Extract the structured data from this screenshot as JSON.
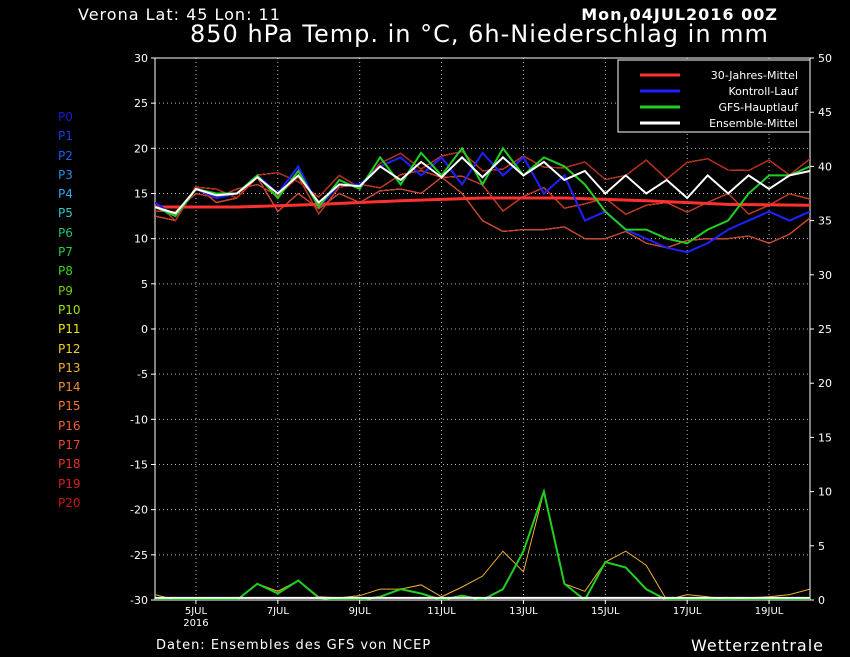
{
  "header": {
    "location": "Verona   Lat: 45 Lon: 11",
    "date": "Mon,04JUL2016 00Z",
    "title": "850 hPa Temp. in °C, 6h-Niederschlag in mm"
  },
  "footer": {
    "source": "Daten: Ensembles des GFS von NCEP",
    "brand": "Wetterzentrale"
  },
  "members": [
    {
      "label": "P0",
      "color": "#1a1ad0"
    },
    {
      "label": "P1",
      "color": "#1a3ae0"
    },
    {
      "label": "P2",
      "color": "#1a60f0"
    },
    {
      "label": "P3",
      "color": "#2a8ae8"
    },
    {
      "label": "P4",
      "color": "#30a8e8"
    },
    {
      "label": "P5",
      "color": "#30c8c8"
    },
    {
      "label": "P6",
      "color": "#20c080"
    },
    {
      "label": "P7",
      "color": "#20d040"
    },
    {
      "label": "P8",
      "color": "#40d020"
    },
    {
      "label": "P9",
      "color": "#70d010"
    },
    {
      "label": "P10",
      "color": "#a0e010"
    },
    {
      "label": "P11",
      "color": "#e8e810"
    },
    {
      "label": "P12",
      "color": "#f0d020"
    },
    {
      "label": "P13",
      "color": "#f0b030"
    },
    {
      "label": "P14",
      "color": "#f09030"
    },
    {
      "label": "P15",
      "color": "#f07830"
    },
    {
      "label": "P16",
      "color": "#f06030"
    },
    {
      "label": "P17",
      "color": "#e84830"
    },
    {
      "label": "P18",
      "color": "#e03030"
    },
    {
      "label": "P19",
      "color": "#d82020"
    },
    {
      "label": "P20",
      "color": "#c81818"
    }
  ],
  "chart_data": {
    "type": "line",
    "x_unit": "hours since 04JUL2016 00Z",
    "x_range": [
      0,
      384
    ],
    "x_ticks": [
      {
        "x": 24,
        "label": "5JUL",
        "sub": "2016"
      },
      {
        "x": 72,
        "label": "7JUL",
        "sub": ""
      },
      {
        "x": 120,
        "label": "9JUL",
        "sub": ""
      },
      {
        "x": 168,
        "label": "11JUL",
        "sub": ""
      },
      {
        "x": 216,
        "label": "13JUL",
        "sub": ""
      },
      {
        "x": 264,
        "label": "15JUL",
        "sub": ""
      },
      {
        "x": 312,
        "label": "17JUL",
        "sub": ""
      },
      {
        "x": 360,
        "label": "19JUL",
        "sub": ""
      }
    ],
    "y_left": {
      "label": "°C",
      "range": [
        -30,
        30
      ],
      "ticks": [
        30,
        25,
        20,
        15,
        10,
        5,
        0,
        -5,
        -10,
        -15,
        -20,
        -25,
        -30
      ]
    },
    "y_right": {
      "label": "mm",
      "range": [
        0,
        50
      ],
      "ticks": [
        50,
        45,
        40,
        35,
        30,
        25,
        20,
        15,
        10,
        5,
        0
      ]
    },
    "grid": true,
    "legend_position": "top-right",
    "series": [
      {
        "name": "30-Jahres-Mittel",
        "color": "#ff3030",
        "axis": "left",
        "x": [
          0,
          48,
          96,
          144,
          192,
          240,
          288,
          336,
          384
        ],
        "y": [
          13.5,
          13.5,
          13.8,
          14.2,
          14.5,
          14.5,
          14.2,
          13.8,
          13.7
        ]
      },
      {
        "name": "Kontroll-Lauf",
        "color": "#2020ff",
        "axis": "left",
        "x": [
          0,
          12,
          24,
          36,
          48,
          60,
          72,
          84,
          96,
          108,
          120,
          132,
          144,
          156,
          168,
          180,
          192,
          204,
          216,
          228,
          240,
          252,
          264,
          276,
          288,
          300,
          312,
          324,
          336,
          348,
          360,
          372,
          384
        ],
        "y": [
          14,
          12.5,
          15.5,
          14.5,
          15,
          17,
          15,
          18,
          13.5,
          16,
          16,
          18,
          19,
          17,
          19,
          16,
          19.5,
          17,
          19,
          15,
          17,
          12,
          13,
          11,
          10,
          9,
          8.5,
          9.5,
          11,
          12,
          13,
          12,
          13
        ]
      },
      {
        "name": "GFS-Hauptlauf",
        "color": "#20d020",
        "axis": "left",
        "x": [
          0,
          12,
          24,
          36,
          48,
          60,
          72,
          84,
          96,
          108,
          120,
          132,
          144,
          156,
          168,
          180,
          192,
          204,
          216,
          228,
          240,
          252,
          264,
          276,
          288,
          300,
          312,
          324,
          336,
          348,
          360,
          372,
          384
        ],
        "y": [
          13.5,
          12.5,
          15.5,
          15,
          15,
          17,
          14.5,
          17.5,
          13.5,
          16.5,
          15.5,
          19,
          16,
          19.5,
          17,
          20,
          16,
          20,
          17,
          19,
          18,
          16,
          13,
          11,
          11,
          10,
          9.5,
          11,
          12,
          15,
          17,
          17,
          18
        ]
      },
      {
        "name": "Ensemble-Mittel",
        "color": "#ffffff",
        "axis": "left",
        "x": [
          0,
          12,
          24,
          36,
          48,
          60,
          72,
          84,
          96,
          108,
          120,
          132,
          144,
          156,
          168,
          180,
          192,
          204,
          216,
          228,
          240,
          252,
          264,
          276,
          288,
          300,
          312,
          324,
          336,
          348,
          360,
          372,
          384
        ],
        "y": [
          13.5,
          12.8,
          15.5,
          14.8,
          15,
          16.8,
          15,
          17,
          14,
          16,
          15.8,
          18,
          16.5,
          18.5,
          16.8,
          19,
          16.8,
          19,
          17,
          18.5,
          16.5,
          17.5,
          15,
          17,
          15,
          16.5,
          14.5,
          17,
          15,
          17,
          15.5,
          17,
          17.5
        ]
      },
      {
        "name": "",
        "color": "#20d020",
        "axis": "right",
        "x": [
          0,
          12,
          24,
          36,
          48,
          60,
          72,
          84,
          96,
          108,
          120,
          132,
          144,
          156,
          168,
          180,
          192,
          204,
          216,
          228,
          240,
          252,
          264,
          276,
          288,
          300,
          312,
          324,
          336,
          348,
          360,
          372,
          384
        ],
        "y": [
          0,
          0,
          0,
          0,
          0,
          0,
          0,
          0,
          0,
          0,
          0,
          0,
          0,
          0,
          0,
          0,
          0,
          0,
          0,
          0,
          0,
          0,
          0,
          0,
          0,
          0,
          0,
          0,
          0,
          0,
          0,
          0,
          0
        ]
      },
      {
        "name": "",
        "color": "#f0b030",
        "axis": "right",
        "x": [
          0,
          12,
          24,
          36,
          48,
          60,
          72,
          84,
          96,
          108,
          120,
          132,
          144,
          156,
          168,
          180,
          192,
          204,
          216,
          228,
          240,
          252,
          264,
          276,
          288,
          300,
          312,
          324,
          336,
          348,
          360,
          372,
          384
        ],
        "y": [
          0,
          0,
          0,
          0,
          0,
          0,
          0,
          0,
          0,
          0,
          0,
          0,
          0,
          0,
          0,
          0,
          0,
          0,
          0,
          0,
          0,
          0,
          0,
          0,
          0,
          0,
          0,
          0,
          0,
          0,
          0,
          0,
          0
        ]
      },
      {
        "name": "",
        "color": "#2a8ae8",
        "axis": "right",
        "x": [
          0,
          12,
          24,
          36,
          48,
          60,
          72,
          84,
          96,
          108,
          120,
          132,
          144,
          156,
          168,
          180,
          192,
          204,
          216,
          228,
          240,
          252,
          264,
          276,
          288,
          300,
          312,
          324,
          336,
          348,
          360,
          372,
          384
        ],
        "y": [
          0,
          0,
          0,
          0,
          0,
          0,
          0,
          0,
          0,
          0,
          0,
          0,
          0,
          0,
          0,
          0,
          0,
          0,
          0,
          0,
          0,
          0,
          0,
          0,
          0,
          0,
          0,
          0,
          0,
          0,
          0,
          0,
          0
        ]
      }
    ],
    "ensemble_spread": {
      "x": [
        0,
        12,
        24,
        36,
        48,
        60,
        72,
        84,
        96,
        108,
        120,
        132,
        144,
        156,
        168,
        180,
        192,
        204,
        216,
        228,
        240,
        252,
        264,
        276,
        288,
        300,
        312,
        324,
        336,
        348,
        360,
        372,
        384
      ],
      "upper": [
        14,
        13,
        16,
        15.5,
        15.5,
        17.5,
        18,
        18,
        15.5,
        17,
        17.5,
        20,
        20,
        20,
        20.5,
        20.5,
        21,
        21,
        21.5,
        22,
        21,
        21,
        20.5,
        20,
        21.5,
        21,
        22.5,
        21.5,
        22,
        21,
        21.5,
        21,
        22
      ],
      "lower": [
        12.5,
        12,
        15,
        14,
        14.5,
        16,
        13,
        15,
        12.5,
        15,
        14,
        14.5,
        15.5,
        15,
        16,
        15,
        12,
        10,
        11,
        11,
        10.5,
        10,
        10,
        10,
        9.5,
        9,
        9,
        10,
        10,
        9.5,
        9.5,
        10.5,
        11.5
      ]
    },
    "precip": {
      "x": [
        0,
        12,
        24,
        36,
        48,
        60,
        72,
        84,
        96,
        108,
        120,
        132,
        144,
        156,
        168,
        180,
        192,
        204,
        216,
        228,
        240,
        252,
        264,
        276,
        288,
        300,
        312,
        324,
        336,
        348,
        360,
        372,
        384
      ],
      "max": [
        0.5,
        0,
        0,
        0,
        0,
        1.5,
        0.8,
        1.8,
        0.3,
        0.2,
        0.4,
        1,
        1,
        1.4,
        0.3,
        1.2,
        2.2,
        4.5,
        2.6,
        10,
        1.5,
        0.8,
        3.5,
        4.5,
        3.2,
        0,
        0.5,
        0.3,
        0,
        0.2,
        0.3,
        0.5,
        1
      ],
      "gfs": [
        0,
        0,
        0,
        0,
        0,
        1.5,
        0.6,
        1.8,
        0.2,
        0,
        0,
        0.3,
        1,
        0.6,
        0,
        0.4,
        0,
        1,
        4.5,
        10,
        1.5,
        0,
        3.5,
        3,
        1,
        0,
        0,
        0,
        0,
        0,
        0,
        0,
        0
      ]
    }
  }
}
